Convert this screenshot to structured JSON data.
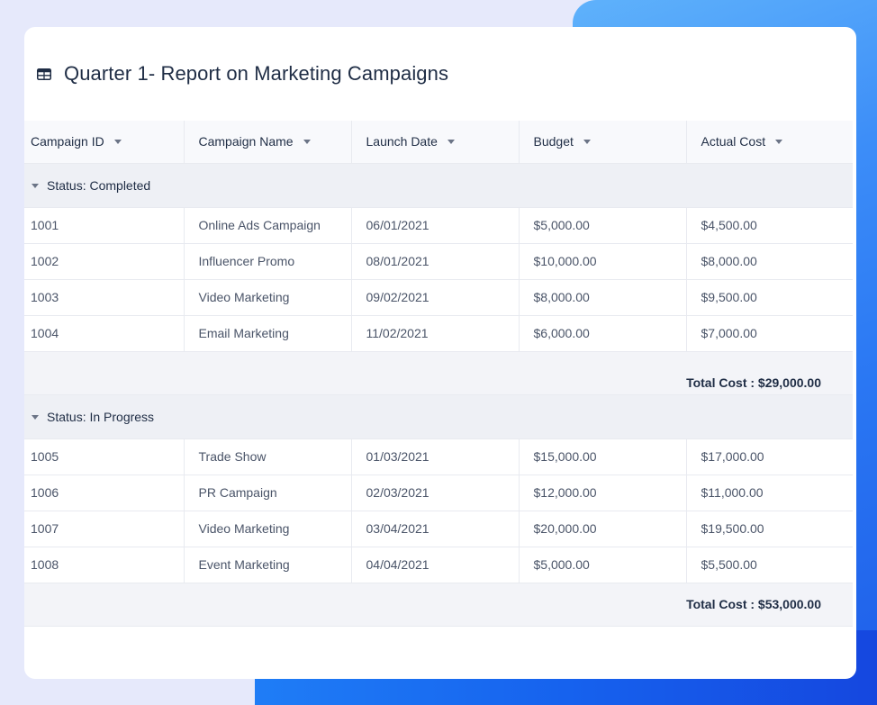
{
  "header": {
    "title": "Quarter 1- Report on Marketing Campaigns",
    "icon": "table-icon"
  },
  "columns": [
    "Campaign ID",
    "Campaign Name",
    "Launch Date",
    "Budget",
    "Actual Cost"
  ],
  "groups": [
    {
      "label": "Status: Completed",
      "rows": [
        [
          "1001",
          "Online Ads Campaign",
          "06/01/2021",
          "$5,000.00",
          "$4,500.00"
        ],
        [
          "1002",
          "Influencer Promo",
          "08/01/2021",
          "$10,000.00",
          "$8,000.00"
        ],
        [
          "1003",
          "Video Marketing",
          "09/02/2021",
          "$8,000.00",
          "$9,500.00"
        ],
        [
          "1004",
          "Email Marketing",
          "11/02/2021",
          "$6,000.00",
          "$7,000.00"
        ]
      ],
      "summary": "Total Cost : $29,000.00"
    },
    {
      "label": "Status: In Progress",
      "rows": [
        [
          "1005",
          "Trade Show",
          "01/03/2021",
          "$15,000.00",
          "$17,000.00"
        ],
        [
          "1006",
          "PR Campaign",
          "02/03/2021",
          "$12,000.00",
          "$11,000.00"
        ],
        [
          "1007",
          "Video Marketing",
          "03/04/2021",
          "$20,000.00",
          "$19,500.00"
        ],
        [
          "1008",
          "Event Marketing",
          "04/04/2021",
          "$5,000.00",
          "$5,500.00"
        ]
      ],
      "summary": "Total Cost : $53,000.00"
    }
  ],
  "colors": {
    "accent": "#1c6ff0",
    "page_bg": "#e6e9fb",
    "header_bg": "#f8f9fc",
    "group_bg": "#eef0f5",
    "text_dark": "#1f2d45",
    "text_body": "#4a5468"
  }
}
